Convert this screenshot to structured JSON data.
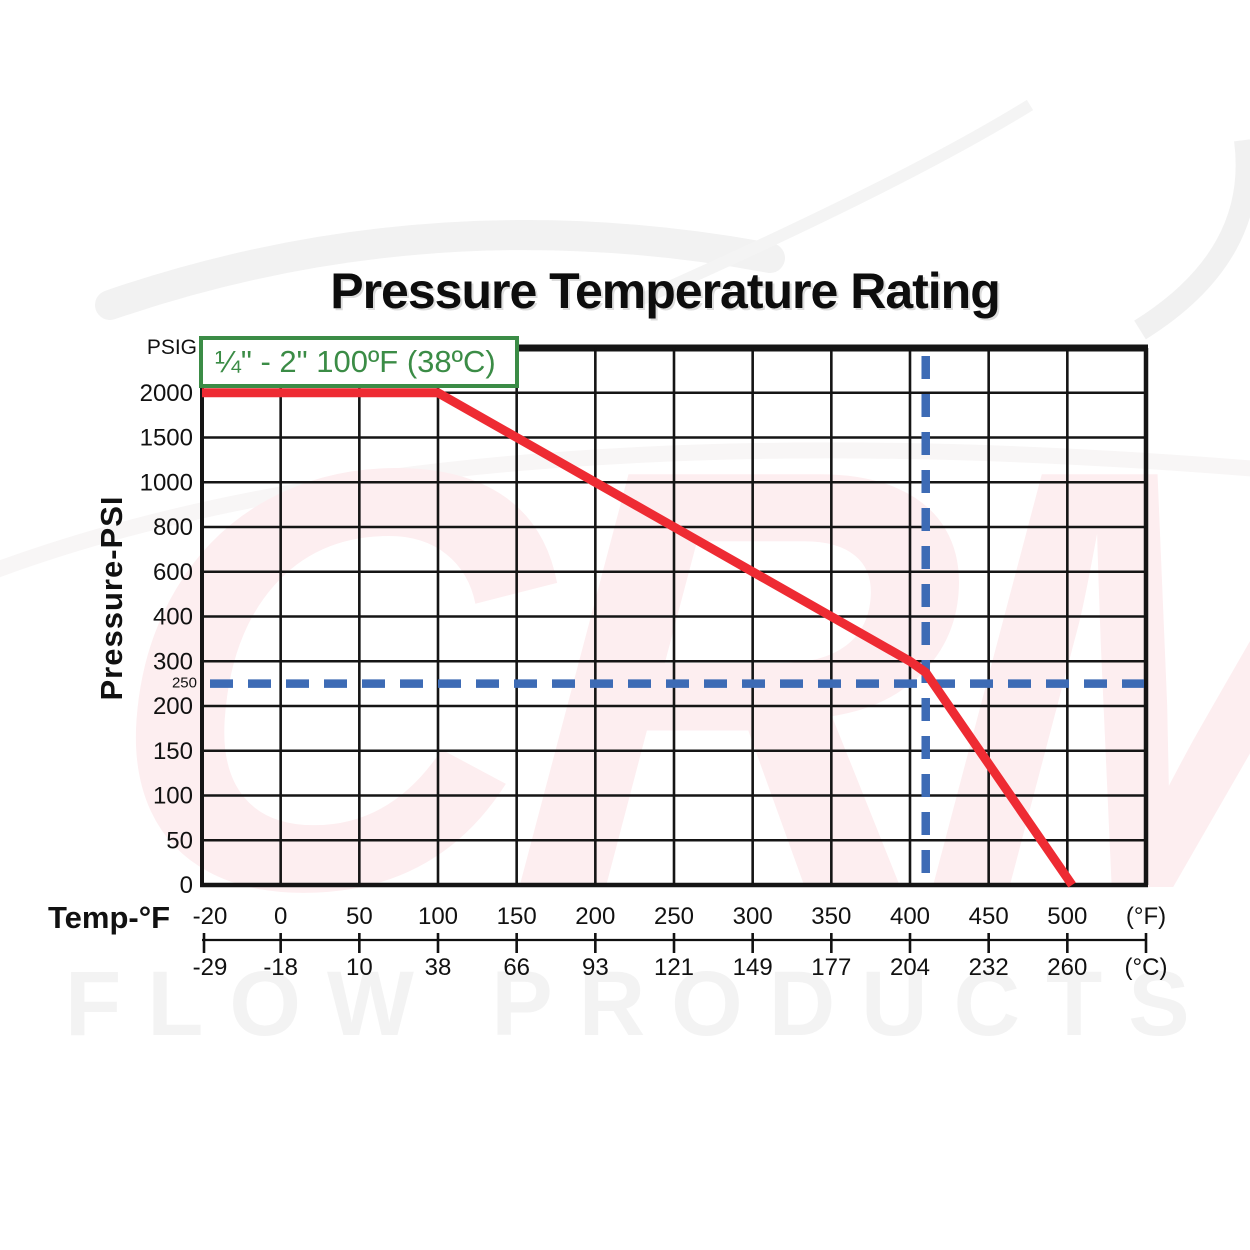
{
  "title": "Pressure Temperature Rating",
  "watermark": {
    "logo_text": "CRM",
    "bottom_text": "FLOW PRODUCTS"
  },
  "chart_data": {
    "type": "line",
    "title": "Pressure Temperature Rating",
    "grid": "on",
    "y_axis": {
      "unit_label": "PSIG",
      "axis_title": "Pressure-PSI",
      "tick_labels": [
        2000,
        1500,
        1000,
        800,
        600,
        400,
        300,
        200,
        150,
        100,
        50,
        0
      ],
      "scale": "ordinal-equal-spacing"
    },
    "x_axis": {
      "axis_title": "Temp-°F",
      "ticks_f": [
        -20,
        0,
        50,
        100,
        150,
        200,
        250,
        300,
        350,
        400,
        450,
        500
      ],
      "unit_f": "(°F)",
      "ticks_c": [
        -29,
        -18,
        10,
        38,
        66,
        93,
        121,
        149,
        177,
        204,
        232,
        260
      ],
      "unit_c": "(°C)",
      "scale": "ordinal-equal-spacing"
    },
    "series": [
      {
        "name": "pressure-temperature-rating-curve",
        "color": "#ee2b33",
        "points_f_psi": [
          [
            -20,
            2000
          ],
          [
            100,
            2000
          ],
          [
            150,
            1500
          ],
          [
            200,
            1000
          ],
          [
            250,
            800
          ],
          [
            300,
            600
          ],
          [
            350,
            400
          ],
          [
            400,
            300
          ],
          [
            410,
            275
          ],
          [
            503,
            0
          ]
        ]
      }
    ],
    "reference_lines": {
      "color": "#3d6bb5",
      "horizontal_psi": 250,
      "horizontal_label": "250",
      "vertical_f": 410
    },
    "annotation": {
      "label": "¼\" - 2\" 100ºF (38ºC)",
      "color": "#3b8c46"
    },
    "grid_color": "#151515"
  }
}
